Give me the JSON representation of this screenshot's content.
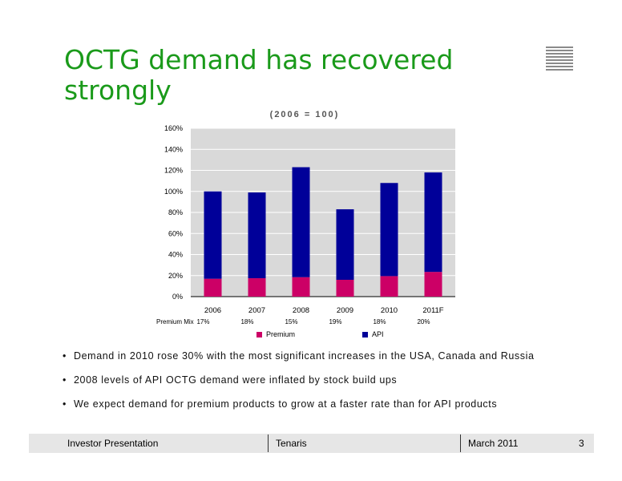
{
  "slide": {
    "title": "OCTG demand has recovered strongly",
    "subtitle": "(2006 = 100)"
  },
  "chart_data": {
    "type": "bar",
    "stacked": true,
    "title": "(2006 = 100)",
    "categories": [
      "2006",
      "2007",
      "2008",
      "2009",
      "2010",
      "2011F"
    ],
    "series": [
      {
        "name": "Premium",
        "color": "#cc0066",
        "values": [
          17,
          17.5,
          18.5,
          16,
          19.5,
          23.5
        ]
      },
      {
        "name": "API",
        "color": "#000099",
        "values": [
          83,
          81.5,
          104.5,
          67,
          88.5,
          94.5
        ]
      }
    ],
    "ylim": [
      0,
      160
    ],
    "yticks": [
      "0%",
      "20%",
      "40%",
      "60%",
      "80%",
      "100%",
      "120%",
      "140%",
      "160%"
    ],
    "premium_mix_label": "Premium Mix",
    "premium_mix": [
      "17%",
      "18%",
      "15%",
      "19%",
      "18%",
      "20%"
    ],
    "grid": true,
    "plot_background": "#d9d9d9",
    "legend_position": "bottom"
  },
  "legend": {
    "premium": "Premium",
    "api": "API"
  },
  "bullets": [
    "Demand in 2010 rose 30% with the most significant increases in the USA, Canada and Russia",
    "2008 levels of API OCTG demand were inflated by stock build ups",
    "We expect demand for premium products to grow at a faster rate than for API products"
  ],
  "footer": {
    "left": "Investor Presentation",
    "center": "Tenaris",
    "date": "March 2011",
    "page": "3"
  }
}
